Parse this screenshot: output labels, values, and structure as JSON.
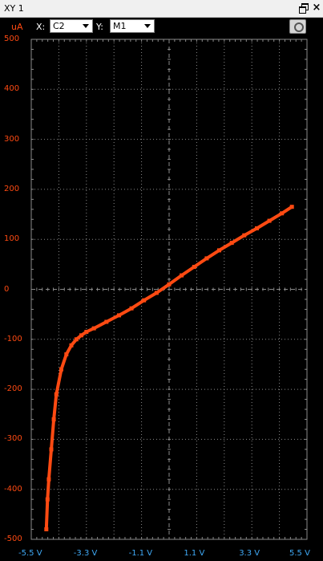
{
  "window": {
    "title": "XY 1"
  },
  "toolbar": {
    "y_unit": "uA",
    "x_label": "X:",
    "x_channel": "C2",
    "y_label": "Y:",
    "y_channel": "M1"
  },
  "colors": {
    "trace": "#ff4a12",
    "y_axis_text": "#ff4a12",
    "x_axis_text": "#3fa9f5",
    "grid": "#8a8a8a",
    "background": "#000000"
  },
  "icons": {
    "restore": "restore-window-icon",
    "close": "close-icon",
    "snapshot": "camera-icon"
  },
  "chart_data": {
    "type": "scatter",
    "x_range": [
      -5.5,
      5.5
    ],
    "y_range": [
      -500,
      500
    ],
    "y_unit": "uA",
    "y_tick_labels": [
      "500",
      "400",
      "300",
      "200",
      "100",
      "0",
      "-100",
      "-200",
      "-300",
      "-400",
      "-500"
    ],
    "x_tick_labels": [
      "-5.5 V",
      "-3.3 V",
      "-1.1 V",
      "1.1 V",
      "3.3 V",
      "5.5 V"
    ],
    "grid": true,
    "series": [
      {
        "x": [
          -4.9,
          -4.85,
          -4.8,
          -4.7,
          -4.6,
          -4.5,
          -4.3,
          -4.1,
          -3.9,
          -3.7,
          -3.5,
          -3.3,
          -3.0,
          -2.5,
          -2.0,
          -1.5,
          -1.0,
          -0.5,
          0.0,
          0.5,
          1.0,
          1.5,
          2.0,
          2.5,
          3.0,
          3.5,
          4.0,
          4.5,
          4.9
        ],
        "y": [
          -480,
          -420,
          -380,
          -320,
          -260,
          -210,
          -160,
          -130,
          -112,
          -100,
          -92,
          -85,
          -78,
          -65,
          -52,
          -38,
          -22,
          -7,
          10,
          28,
          45,
          62,
          78,
          93,
          108,
          122,
          137,
          152,
          165
        ]
      }
    ]
  }
}
